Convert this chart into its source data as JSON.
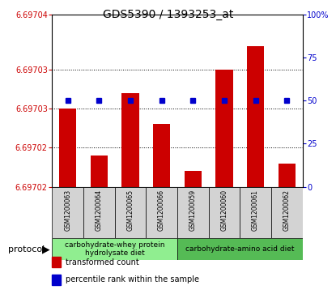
{
  "title": "GDS5390 / 1393253_at",
  "samples": [
    "GSM1200063",
    "GSM1200064",
    "GSM1200065",
    "GSM1200066",
    "GSM1200059",
    "GSM1200060",
    "GSM1200061",
    "GSM1200062"
  ],
  "bar_values": [
    6.697028,
    6.697022,
    6.69703,
    6.697026,
    6.69702,
    6.697033,
    6.697036,
    6.697021
  ],
  "percentile_values": [
    50,
    50,
    50,
    50,
    50,
    50,
    50,
    50
  ],
  "bar_color": "#cc0000",
  "percentile_color": "#0000cc",
  "ymin": 6.697018,
  "ymax": 6.69704,
  "yright_min": 0,
  "yright_max": 100,
  "left_tick_vals": [
    6.697018,
    6.697023,
    6.697028,
    6.697033,
    6.69704
  ],
  "left_tick_labels": [
    "6.69702",
    "6.69702",
    "6.69703",
    "6.69703",
    "6.69704"
  ],
  "right_tick_pcts": [
    0,
    25,
    50,
    75,
    100
  ],
  "right_tick_labels": [
    "0",
    "25",
    "50",
    "75",
    "100%"
  ],
  "protocol_groups": [
    {
      "label": "carbohydrate-whey protein\nhydrolysate diet",
      "n_samples": 4,
      "color": "#90ee90"
    },
    {
      "label": "carbohydrate-amino acid diet",
      "n_samples": 4,
      "color": "#55bb55"
    }
  ],
  "protocol_label": "protocol",
  "legend_items": [
    {
      "color": "#cc0000",
      "label": "transformed count"
    },
    {
      "color": "#0000cc",
      "label": "percentile rank within the sample"
    }
  ],
  "bar_width": 0.55,
  "sample_cell_color": "#d3d3d3",
  "title_fontsize": 10,
  "tick_fontsize": 7,
  "sample_fontsize": 5.5,
  "protocol_fontsize": 6.5,
  "legend_fontsize": 7
}
